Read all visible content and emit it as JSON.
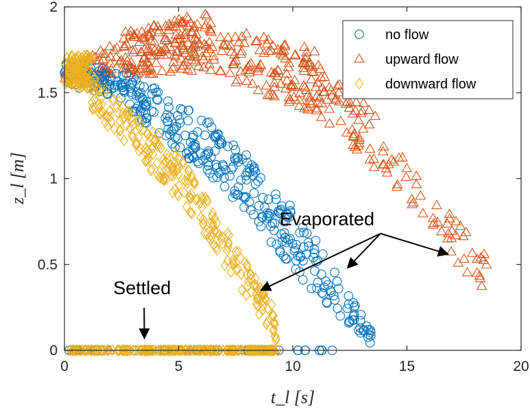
{
  "chart_data": {
    "type": "scatter",
    "title": "",
    "xlabel": "t_l [s]",
    "ylabel": "z_l [m]",
    "xlim": [
      0,
      20
    ],
    "ylim": [
      0,
      2
    ],
    "xticks": [
      "0",
      "5",
      "10",
      "15",
      "20"
    ],
    "yticks": [
      "0",
      "0.5",
      "1",
      "1.5",
      "2"
    ],
    "grid": false,
    "legend_position": "top-right",
    "series": [
      {
        "name": "no flow",
        "marker": "circle",
        "color": "#0072BD",
        "bands": [
          {
            "x0": 0.0,
            "x1": 2.8,
            "ymin_at_x0": 1.55,
            "ymin_at_x1": 1.45,
            "ymax_at_x0": 1.68,
            "ymax_at_x1": 1.62,
            "count": 80
          },
          {
            "x0": 2.8,
            "x1": 7.0,
            "ymin_at_x0": 1.4,
            "ymin_at_x1": 0.95,
            "ymax_at_x0": 1.62,
            "ymax_at_x1": 1.28,
            "count": 130
          },
          {
            "x0": 7.0,
            "x1": 10.5,
            "ymin_at_x0": 0.95,
            "ymin_at_x1": 0.4,
            "ymax_at_x0": 1.3,
            "ymax_at_x1": 0.75,
            "count": 110
          },
          {
            "x0": 10.5,
            "x1": 13.5,
            "ymin_at_x0": 0.4,
            "ymin_at_x1": 0.02,
            "ymax_at_x0": 0.75,
            "ymax_at_x1": 0.1,
            "count": 60
          }
        ],
        "settled": {
          "x0": 0.0,
          "x1": 11.9,
          "y": 0.0,
          "count": 45
        }
      },
      {
        "name": "upward flow",
        "marker": "triangle",
        "color": "#D95319",
        "bands": [
          {
            "x0": 0.0,
            "x1": 2.5,
            "ymin_at_x0": 1.55,
            "ymin_at_x1": 1.58,
            "ymax_at_x0": 1.65,
            "ymax_at_x1": 1.8,
            "count": 60
          },
          {
            "x0": 2.5,
            "x1": 6.5,
            "ymin_at_x0": 1.6,
            "ymin_at_x1": 1.62,
            "ymax_at_x0": 1.85,
            "ymax_at_x1": 1.98,
            "count": 170
          },
          {
            "x0": 6.5,
            "x1": 11.0,
            "ymin_at_x0": 1.6,
            "ymin_at_x1": 1.38,
            "ymax_at_x0": 1.9,
            "ymax_at_x1": 1.75,
            "count": 120
          },
          {
            "x0": 11.0,
            "x1": 14.5,
            "ymin_at_x0": 1.38,
            "ymin_at_x1": 0.95,
            "ymax_at_x0": 1.7,
            "ymax_at_x1": 1.3,
            "count": 70
          },
          {
            "x0": 14.5,
            "x1": 18.5,
            "ymin_at_x0": 0.95,
            "ymin_at_x1": 0.3,
            "ymax_at_x0": 1.2,
            "ymax_at_x1": 0.55,
            "count": 45
          }
        ],
        "settled": {
          "x0": 0.0,
          "x1": 9.5,
          "y": 0.0,
          "count": 20
        }
      },
      {
        "name": "downward flow",
        "marker": "diamond",
        "color": "#EDB120",
        "bands": [
          {
            "x0": 0.0,
            "x1": 1.2,
            "ymin_at_x0": 1.55,
            "ymin_at_x1": 1.52,
            "ymax_at_x0": 1.72,
            "ymax_at_x1": 1.72,
            "count": 130
          },
          {
            "x0": 1.2,
            "x1": 5.0,
            "ymin_at_x0": 1.4,
            "ymin_at_x1": 0.88,
            "ymax_at_x0": 1.6,
            "ymax_at_x1": 1.15,
            "count": 130
          },
          {
            "x0": 5.0,
            "x1": 9.3,
            "ymin_at_x0": 0.88,
            "ymin_at_x1": 0.05,
            "ymax_at_x0": 1.15,
            "ymax_at_x1": 0.22,
            "count": 130
          }
        ],
        "settled": {
          "x0": 0.2,
          "x1": 9.4,
          "y": 0.0,
          "count": 210
        }
      }
    ],
    "annotations": [
      {
        "text": "Evaporated",
        "text_x": 11.5,
        "text_y": 0.76,
        "arrows": [
          [
            8.6,
            0.35
          ],
          [
            12.4,
            0.48
          ],
          [
            16.8,
            0.56
          ]
        ]
      },
      {
        "text": "Settled",
        "text_x": 3.4,
        "text_y": 0.36,
        "arrows": [
          [
            3.5,
            0.07
          ]
        ]
      }
    ]
  }
}
